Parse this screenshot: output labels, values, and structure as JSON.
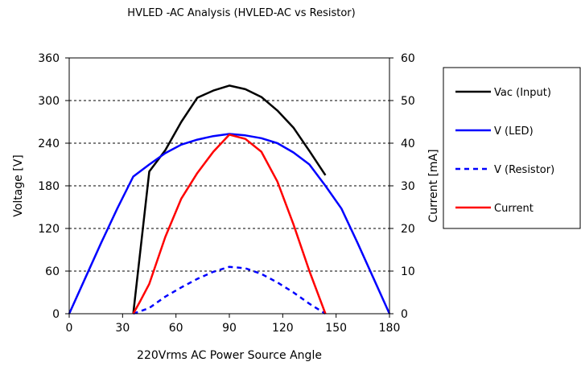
{
  "chart_data": {
    "type": "line",
    "title": "HVLED -AC Analysis (HVLED-AC vs Resistor)",
    "xlabel": "220Vrms AC Power Source Angle",
    "ylabel": "Voltage [V]",
    "y2label": "Current [mA]",
    "xlim": [
      0,
      180
    ],
    "ylim": [
      0,
      360
    ],
    "y2lim": [
      0,
      60
    ],
    "x_ticks": [
      "0",
      "30",
      "60",
      "90",
      "120",
      "150",
      "180"
    ],
    "y_ticks": [
      "0",
      "60",
      "120",
      "180",
      "240",
      "300",
      "360"
    ],
    "y2_ticks": [
      "0",
      "10",
      "20",
      "30",
      "40",
      "50",
      "60"
    ],
    "grid": "horizontal dashed",
    "legend_position": "right",
    "series": [
      {
        "name": "Vac (Input)",
        "color": "#000000",
        "style": "solid",
        "axis": "left",
        "x": [
          36,
          45,
          54,
          63,
          72,
          81,
          90,
          99,
          108,
          117,
          126,
          135,
          144
        ],
        "y": [
          0,
          200,
          230,
          270,
          304,
          314,
          321,
          316,
          305,
          286,
          262,
          229,
          195
        ]
      },
      {
        "name": "V (LED)",
        "color": "#0000ff",
        "style": "solid",
        "axis": "left",
        "x": [
          0,
          9,
          18,
          27,
          36,
          45,
          54,
          63,
          72,
          81,
          90,
          99,
          108,
          117,
          126,
          135,
          144,
          153,
          162,
          171,
          180
        ],
        "y": [
          0,
          50,
          100,
          148,
          193,
          210,
          226,
          238,
          245,
          250,
          253,
          251,
          247,
          240,
          227,
          210,
          180,
          148,
          100,
          50,
          0
        ]
      },
      {
        "name": "V (Resistor)",
        "color": "#0000ff",
        "style": "dashed",
        "axis": "left",
        "x": [
          36,
          45,
          54,
          63,
          72,
          81,
          90,
          99,
          108,
          117,
          126,
          135,
          144
        ],
        "y": [
          0,
          8,
          24,
          37,
          49,
          59,
          66,
          64,
          56,
          44,
          30,
          14,
          0
        ]
      },
      {
        "name": "Current",
        "color": "#ff0000",
        "style": "solid",
        "axis": "right",
        "x": [
          36,
          40,
          45,
          54,
          63,
          72,
          81,
          90,
          99,
          108,
          117,
          126,
          135,
          144
        ],
        "y": [
          0,
          3,
          7,
          18,
          27,
          33,
          38,
          42,
          41,
          38,
          31,
          21,
          10,
          0
        ]
      }
    ]
  }
}
